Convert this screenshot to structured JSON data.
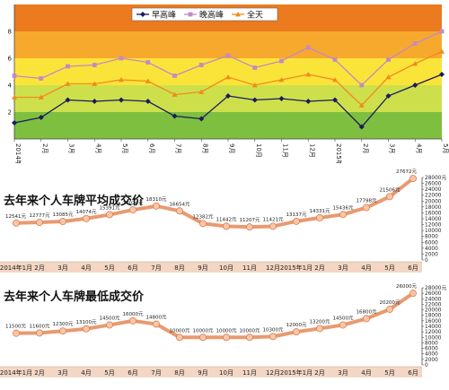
{
  "chart_data": [
    {
      "type": "line",
      "title": "",
      "xlabel": "",
      "ylabel": "",
      "ylim": [
        0,
        10
      ],
      "y_ticks": [
        "2",
        "4",
        "6",
        "8"
      ],
      "grid": false,
      "background_bands": [
        {
          "from": 0,
          "to": 2,
          "color": "#7fbf3f"
        },
        {
          "from": 2,
          "to": 4,
          "color": "#cde04c"
        },
        {
          "from": 4,
          "to": 6,
          "color": "#fbe43a"
        },
        {
          "from": 6,
          "to": 8,
          "color": "#f7a92e"
        },
        {
          "from": 8,
          "to": 10,
          "color": "#ec7a1e"
        }
      ],
      "categories": [
        "2014年1月",
        "2月",
        "3月",
        "4月",
        "5月",
        "6月",
        "7月",
        "8月",
        "9月",
        "10月",
        "11月",
        "12月",
        "2015年1月",
        "2月",
        "3月",
        "4月",
        "5月"
      ],
      "legend_position": "top",
      "series": [
        {
          "name": "早高峰",
          "color": "#1a1a5e",
          "marker": "diamond",
          "values": [
            1.2,
            1.6,
            2.9,
            2.8,
            2.9,
            2.8,
            1.7,
            1.5,
            3.2,
            2.9,
            3.0,
            2.8,
            2.9,
            0.9,
            3.2,
            4.0,
            4.8
          ]
        },
        {
          "name": "晚高峰",
          "color": "#c48ac2",
          "marker": "square",
          "values": [
            4.7,
            4.5,
            5.4,
            5.5,
            6.0,
            5.7,
            4.7,
            5.5,
            6.2,
            5.3,
            5.8,
            6.8,
            5.9,
            4.0,
            5.9,
            7.1,
            8.0
          ]
        },
        {
          "name": "全天",
          "color": "#f28a1c",
          "marker": "triangle",
          "values": [
            3.1,
            3.1,
            4.1,
            4.1,
            4.4,
            4.3,
            3.3,
            3.5,
            4.6,
            4.0,
            4.4,
            4.8,
            4.4,
            2.5,
            4.6,
            5.6,
            6.5
          ]
        }
      ]
    },
    {
      "type": "line",
      "title": "去年来个人车牌平均成交价",
      "xlabel": "",
      "ylabel": "",
      "ylim": [
        0,
        28000
      ],
      "y_ticks": [
        "0",
        "2000",
        "4000",
        "6000",
        "8000",
        "10000",
        "12000",
        "14000",
        "16000",
        "18000",
        "20000",
        "22000",
        "24000",
        "26000",
        "28000元"
      ],
      "categories": [
        "2014年1月",
        "2月",
        "3月",
        "4月",
        "5月",
        "6月",
        "7月",
        "8月",
        "9月",
        "10月",
        "11月",
        "12月",
        "2015年1月",
        "2月",
        "3月",
        "4月",
        "5月",
        "6月"
      ],
      "values": [
        12541,
        12777,
        13085,
        14074,
        15391,
        17024,
        18310,
        16654,
        12382,
        11442,
        11207,
        11421,
        13137,
        14331,
        15436,
        17798,
        21506,
        27672
      ],
      "data_labels": [
        "12541元",
        "12777元",
        "13085元",
        "14074元",
        "15391元",
        "17024元",
        "18310元",
        "16654元",
        "12382元",
        "11442元",
        "11207元",
        "11421元",
        "13137元",
        "14331元",
        "15436元",
        "17798元",
        "21506元",
        "27672元"
      ],
      "series_color": "#e89a70"
    },
    {
      "type": "line",
      "title": "去年来个人车牌最低成交价",
      "xlabel": "",
      "ylabel": "",
      "ylim": [
        0,
        28000
      ],
      "y_ticks": [
        "0",
        "2000",
        "4000",
        "6000",
        "8000",
        "10000",
        "12000",
        "14000",
        "16000",
        "18000",
        "20000",
        "22000",
        "24000",
        "26000",
        "28000元"
      ],
      "categories": [
        "2014年1月",
        "2月",
        "3月",
        "4月",
        "5月",
        "6月",
        "7月",
        "8月",
        "9月",
        "10月",
        "11月",
        "12月",
        "2015年1月",
        "2月",
        "3月",
        "4月",
        "5月",
        "6月"
      ],
      "values": [
        11500,
        11600,
        12300,
        13100,
        14500,
        16000,
        14800,
        10000,
        10000,
        10000,
        10000,
        10300,
        12000,
        13200,
        14500,
        16800,
        20200,
        26000
      ],
      "data_labels": [
        "11500元",
        "11600元",
        "12300元",
        "13100元",
        "14500元",
        "16000元",
        "14800元",
        "10000元",
        "10000元",
        "10000元",
        "10000元",
        "10300元",
        "12000元",
        "13200元",
        "14500元",
        "16800元",
        "20200元",
        "26000元"
      ],
      "series_color": "#e89a70"
    }
  ]
}
